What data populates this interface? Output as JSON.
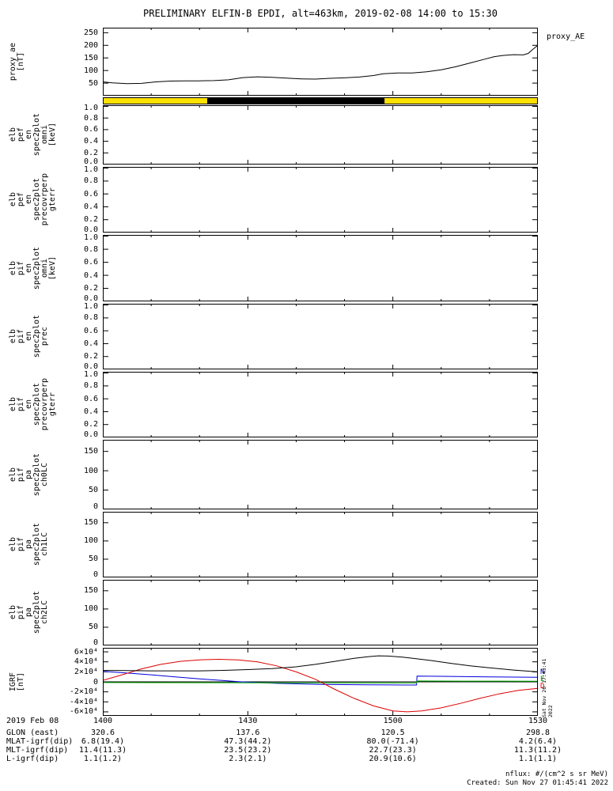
{
  "title": "PRELIMINARY ELFIN-B EPDI, alt=463km, 2019-02-08 14:00 to 15:30",
  "right_label": "proxy_AE",
  "x_axis": {
    "range": [
      0,
      90
    ],
    "major_ticks": [
      {
        "t": 0,
        "label": "1400"
      },
      {
        "t": 30,
        "label": "1430"
      },
      {
        "t": 60,
        "label": "1500"
      },
      {
        "t": 90,
        "label": "1530"
      }
    ],
    "minor_ticks": [
      10,
      20,
      40,
      50,
      70,
      80
    ]
  },
  "chart_data": [
    {
      "id": "proxy_ae",
      "type": "line",
      "ylabel_words": [
        "proxy_ae",
        "[nT]"
      ],
      "y_range": [
        0,
        270
      ],
      "y_ticks": [
        {
          "v": 50,
          "label": "50"
        },
        {
          "v": 100,
          "label": "100"
        },
        {
          "v": 150,
          "label": "150"
        },
        {
          "v": 200,
          "label": "200"
        },
        {
          "v": 250,
          "label": "250"
        }
      ],
      "series": [
        {
          "name": "proxy_AE",
          "color": "#000000",
          "x": [
            0,
            2,
            5,
            8,
            11,
            14,
            17,
            20,
            23,
            26,
            29,
            32,
            35,
            38,
            41,
            44,
            47,
            50,
            53,
            56,
            58,
            61,
            64,
            67,
            70,
            73,
            76,
            79,
            81,
            83,
            85,
            87,
            88,
            89,
            90
          ],
          "y": [
            55,
            51,
            48,
            49,
            55,
            58,
            59,
            59,
            60,
            63,
            72,
            75,
            73,
            70,
            67,
            66,
            69,
            71,
            74,
            80,
            87,
            90,
            90,
            95,
            103,
            115,
            130,
            145,
            155,
            160,
            163,
            162,
            168,
            185,
            200
          ]
        }
      ]
    },
    {
      "id": "science_zone_bar",
      "type": "band",
      "segments": [
        {
          "start": 0,
          "end": 21.6,
          "color": "#ffe100"
        },
        {
          "start": 21.6,
          "end": 58.3,
          "color": "#000000"
        },
        {
          "start": 58.3,
          "end": 90,
          "color": "#ffe100"
        }
      ]
    },
    {
      "id": "elb_pef_en_spec2plot_omni",
      "type": "empty",
      "ylabel_words": [
        "elb",
        "pef",
        "en",
        "spec2plot",
        "omni",
        "[keV]"
      ],
      "y_range": [
        0,
        1.02
      ],
      "y_ticks": [
        {
          "v": 0.0,
          "label": "0.0"
        },
        {
          "v": 0.2,
          "label": "0.2"
        },
        {
          "v": 0.4,
          "label": "0.4"
        },
        {
          "v": 0.6,
          "label": "0.6"
        },
        {
          "v": 0.8,
          "label": "0.8"
        },
        {
          "v": 1.0,
          "label": "1.0"
        }
      ],
      "series": []
    },
    {
      "id": "elb_pef_en_spec2plot_precovrperp_gterr",
      "type": "empty",
      "ylabel_words": [
        "elb",
        "pef",
        "en",
        "spec2plot",
        "precovrperp",
        "gterr"
      ],
      "y_range": [
        0,
        1.02
      ],
      "y_ticks": [
        {
          "v": 0.0,
          "label": "0.0"
        },
        {
          "v": 0.2,
          "label": "0.2"
        },
        {
          "v": 0.4,
          "label": "0.4"
        },
        {
          "v": 0.6,
          "label": "0.6"
        },
        {
          "v": 0.8,
          "label": "0.8"
        },
        {
          "v": 1.0,
          "label": "1.0"
        }
      ],
      "series": []
    },
    {
      "id": "elb_pif_en_spec2plot_omni",
      "type": "empty",
      "ylabel_words": [
        "elb",
        "pif",
        "en",
        "spec2plot",
        "omni",
        "[keV]"
      ],
      "y_range": [
        0,
        1.02
      ],
      "y_ticks": [
        {
          "v": 0.0,
          "label": "0.0"
        },
        {
          "v": 0.2,
          "label": "0.2"
        },
        {
          "v": 0.4,
          "label": "0.4"
        },
        {
          "v": 0.6,
          "label": "0.6"
        },
        {
          "v": 0.8,
          "label": "0.8"
        },
        {
          "v": 1.0,
          "label": "1.0"
        }
      ],
      "series": []
    },
    {
      "id": "elb_pif_en_spec2plot_prec",
      "type": "empty",
      "ylabel_words": [
        "elb",
        "pif",
        "en",
        "spec2plot",
        "prec"
      ],
      "y_range": [
        0,
        1.02
      ],
      "y_ticks": [
        {
          "v": 0.0,
          "label": "0.0"
        },
        {
          "v": 0.2,
          "label": "0.2"
        },
        {
          "v": 0.4,
          "label": "0.4"
        },
        {
          "v": 0.6,
          "label": "0.6"
        },
        {
          "v": 0.8,
          "label": "0.8"
        },
        {
          "v": 1.0,
          "label": "1.0"
        }
      ],
      "series": []
    },
    {
      "id": "elb_pif_en_spec2plot_precovrperp_gterr",
      "type": "empty",
      "ylabel_words": [
        "elb",
        "pif",
        "en",
        "spec2plot",
        "precovrperp",
        "gterr"
      ],
      "y_range": [
        0,
        1.02
      ],
      "y_ticks": [
        {
          "v": 0.0,
          "label": "0.0"
        },
        {
          "v": 0.2,
          "label": "0.2"
        },
        {
          "v": 0.4,
          "label": "0.4"
        },
        {
          "v": 0.6,
          "label": "0.6"
        },
        {
          "v": 0.8,
          "label": "0.8"
        },
        {
          "v": 1.0,
          "label": "1.0"
        }
      ],
      "series": []
    },
    {
      "id": "elb_pif_pa_spec2plot_ch0LC",
      "type": "empty",
      "ylabel_words": [
        "elb",
        "pif",
        "pa",
        "spec2plot",
        "ch0LC"
      ],
      "y_range": [
        0,
        180
      ],
      "y_ticks": [
        {
          "v": 0,
          "label": "0"
        },
        {
          "v": 50,
          "label": "50"
        },
        {
          "v": 100,
          "label": "100"
        },
        {
          "v": 150,
          "label": "150"
        }
      ],
      "series": []
    },
    {
      "id": "elb_pif_pa_spec2plot_ch1LC",
      "type": "empty",
      "ylabel_words": [
        "elb",
        "pif",
        "pa",
        "spec2plot",
        "ch1LC"
      ],
      "y_range": [
        0,
        180
      ],
      "y_ticks": [
        {
          "v": 0,
          "label": "0"
        },
        {
          "v": 50,
          "label": "50"
        },
        {
          "v": 100,
          "label": "100"
        },
        {
          "v": 150,
          "label": "150"
        }
      ],
      "series": []
    },
    {
      "id": "elb_pif_pa_spec2plot_ch2LC",
      "type": "empty",
      "ylabel_words": [
        "elb",
        "pif",
        "pa",
        "spec2plot",
        "ch2LC"
      ],
      "y_range": [
        0,
        180
      ],
      "y_ticks": [
        {
          "v": 0,
          "label": "0"
        },
        {
          "v": 50,
          "label": "50"
        },
        {
          "v": 100,
          "label": "100"
        },
        {
          "v": 150,
          "label": "150"
        }
      ],
      "series": []
    },
    {
      "id": "igrf",
      "type": "line",
      "ylabel_words": [
        "IGRF",
        "[nT]"
      ],
      "y_range": [
        -68000,
        68000
      ],
      "zero_line": true,
      "y_ticks": [
        {
          "v": 60000,
          "label": "6×10⁴"
        },
        {
          "v": 40000,
          "label": "4×10⁴"
        },
        {
          "v": 20000,
          "label": "2×10⁴"
        },
        {
          "v": 0,
          "label": "0"
        },
        {
          "v": -20000,
          "label": "-2×10⁴"
        },
        {
          "v": -40000,
          "label": "-4×10⁴"
        },
        {
          "v": -60000,
          "label": "-6×10⁴"
        }
      ],
      "series": [
        {
          "name": "N",
          "color": "#0000dd",
          "x": [
            0,
            5,
            10,
            15,
            20,
            25,
            28,
            32,
            36,
            40,
            45,
            50,
            55,
            60,
            64,
            64.9,
            65,
            70,
            75,
            80,
            85,
            90
          ],
          "y": [
            21000,
            17500,
            14000,
            10000,
            6000,
            2500,
            500,
            -1500,
            -3000,
            -4000,
            -5000,
            -5500,
            -6000,
            -6200,
            -6300,
            -6300,
            11500,
            11000,
            10500,
            10000,
            9500,
            9000
          ]
        },
        {
          "name": "E",
          "color": "#00aa00",
          "x": [
            0,
            20,
            40,
            60,
            64.9,
            65,
            75,
            90
          ],
          "y": [
            -1500,
            -1800,
            -2000,
            -2200,
            -2200,
            1800,
            1500,
            1200
          ]
        },
        {
          "name": "D",
          "color": "#dd0000",
          "x": [
            0,
            4,
            8,
            12,
            16,
            20,
            24,
            28,
            32,
            36,
            40,
            44,
            48,
            52,
            56,
            60,
            63,
            66,
            70,
            74,
            78,
            82,
            86,
            90
          ],
          "y": [
            3000,
            14000,
            26000,
            35000,
            41000,
            44000,
            45000,
            44000,
            40000,
            32000,
            20000,
            5000,
            -15000,
            -33000,
            -48000,
            -58000,
            -60000,
            -58000,
            -52000,
            -43000,
            -33000,
            -24000,
            -17000,
            -13000
          ]
        },
        {
          "name": "B",
          "color": "#000000",
          "x": [
            0,
            5,
            10,
            15,
            20,
            25,
            30,
            35,
            40,
            44,
            48,
            52,
            55,
            57,
            59,
            62,
            65,
            68,
            72,
            76,
            80,
            85,
            90
          ],
          "y": [
            23000,
            22500,
            22000,
            22000,
            22000,
            23000,
            24500,
            26500,
            30000,
            35000,
            41000,
            47000,
            50500,
            52000,
            51500,
            49500,
            46000,
            42500,
            37000,
            32000,
            28000,
            23500,
            20000
          ]
        }
      ]
    }
  ],
  "igrf_legend": [
    {
      "label": "N",
      "color": "#0000dd"
    },
    {
      "label": "E",
      "color": "#00aa00"
    },
    {
      "label": "D",
      "color": "#dd0000"
    }
  ],
  "footer": {
    "date_label": "2019 Feb 08",
    "rows": [
      {
        "label": "GLON (east)",
        "values": [
          "320.6",
          "137.6",
          "120.5",
          "298.8"
        ]
      },
      {
        "label": "MLAT-igrf(dip)",
        "values": [
          "6.8(19.4)",
          "47.3(44.2)",
          "80.0(-71.4)",
          "4.2(6.4)"
        ]
      },
      {
        "label": "MLT-igrf(dip)",
        "values": [
          "11.4(11.3)",
          "23.5(23.2)",
          "22.7(23.3)",
          "11.3(11.2)"
        ]
      },
      {
        "label": "L-igrf(dip)",
        "values": [
          "1.1(1.2)",
          "2.3(2.1)",
          "20.9(10.6)",
          "1.1(1.1)"
        ]
      }
    ]
  },
  "annotations": {
    "side_timestamp": "Sat Nov 26 17:43:41 2022",
    "flux_units": "nflux: #/(cm^2 s sr MeV)",
    "created": "Created: Sun Nov 27 01:45:41 2022"
  }
}
